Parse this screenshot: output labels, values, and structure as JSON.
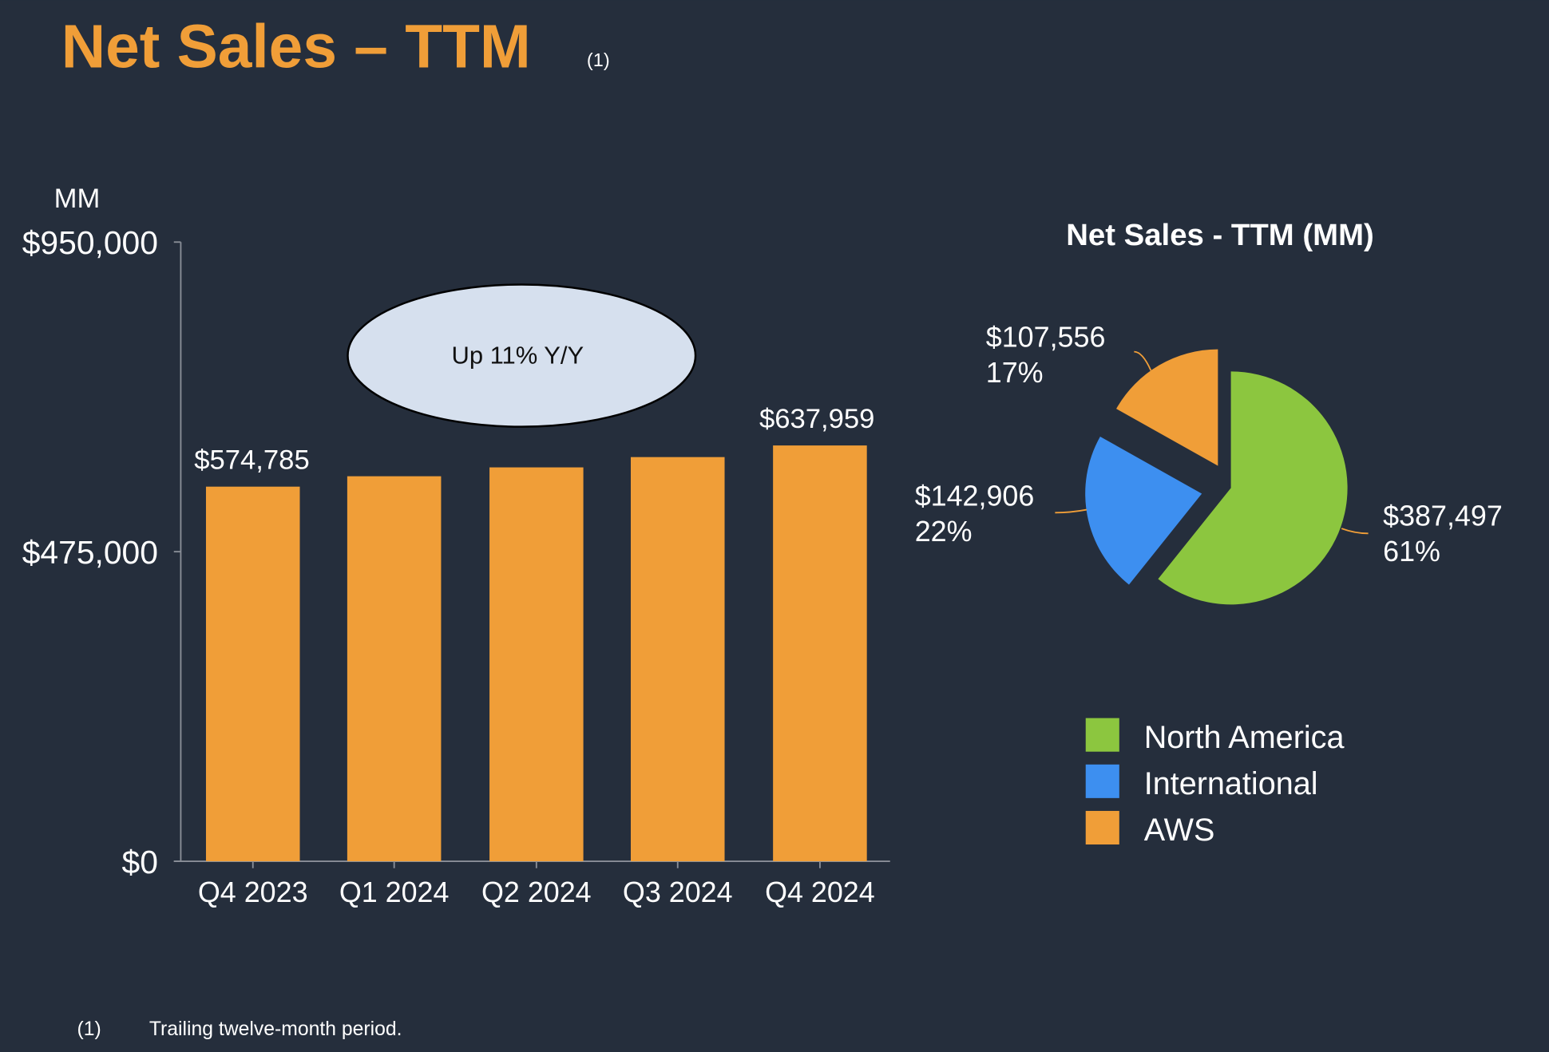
{
  "header": {
    "title": "Net Sales – TTM",
    "note_marker": "(1)"
  },
  "footnote": {
    "marker": "(1)",
    "text": "Trailing twelve-month period."
  },
  "chart_data": [
    {
      "type": "bar",
      "y_unit_label": "MM",
      "annotation": "Up 11% Y/Y",
      "categories": [
        "Q4 2023",
        "Q1 2024",
        "Q2 2024",
        "Q3 2024",
        "Q4 2024"
      ],
      "values": [
        574785,
        590740,
        604334,
        620128,
        637959
      ],
      "value_labels": [
        "$574,785",
        null,
        null,
        null,
        "$637,959"
      ],
      "color": "#f09e38",
      "ylim": [
        0,
        950000
      ],
      "yticks": [
        {
          "value": 0,
          "label": "$0"
        },
        {
          "value": 475000,
          "label": "$475,000"
        },
        {
          "value": 950000,
          "label": "$950,000"
        }
      ]
    },
    {
      "type": "pie",
      "title": "Net Sales - TTM (MM)",
      "categories": [
        "North America",
        "International",
        "AWS"
      ],
      "values": [
        387497,
        142906,
        107556
      ],
      "value_labels": [
        "$387,497",
        "$142,906",
        "$107,556"
      ],
      "percents": [
        61,
        22,
        17
      ],
      "percent_labels": [
        "61%",
        "22%",
        "17%"
      ],
      "colors": [
        "#8cc63f",
        "#3d8ff0",
        "#f09e38"
      ],
      "legend": "right"
    }
  ]
}
